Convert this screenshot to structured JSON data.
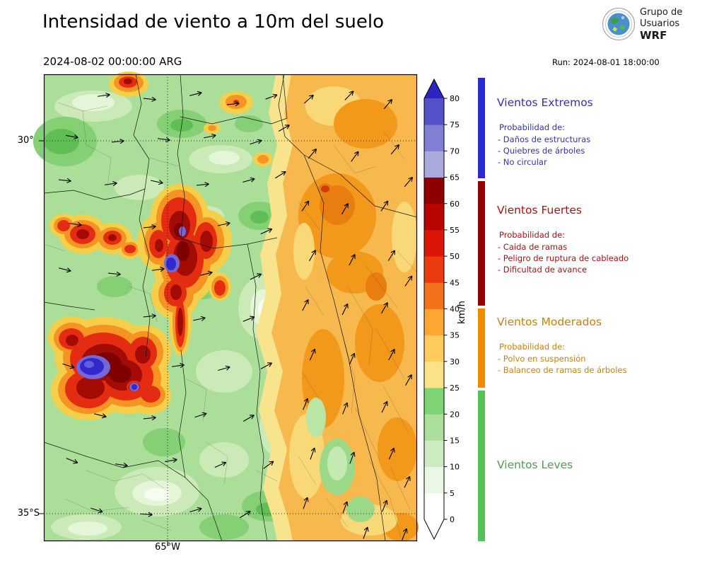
{
  "header": {
    "title": "Intensidad de viento a 10m del suelo",
    "valid_datetime": "2024-08-02 00:00:00 ARG",
    "run_label": "Run: 2024-08-01 18:00:00",
    "logo": {
      "line1": "Grupo de",
      "line2": "Usuarios",
      "line3": "WRF"
    }
  },
  "map": {
    "lat_labels": [
      "30°S",
      "35°S"
    ],
    "lon_label": "65°W"
  },
  "colorbar": {
    "unit": "km/h",
    "ticks": [
      0,
      5,
      10,
      15,
      20,
      25,
      30,
      35,
      40,
      45,
      50,
      55,
      60,
      65,
      70,
      75,
      80
    ],
    "colors": [
      "#ffffff",
      "#e9f7e4",
      "#cdebc0",
      "#abdf9c",
      "#7ed474",
      "#fbe289",
      "#fdcc5c",
      "#fda632",
      "#f4711c",
      "#ea3b10",
      "#dc1607",
      "#b80403",
      "#8f0000",
      "#aaaadd",
      "#7f7fd4",
      "#5352c8"
    ],
    "over_color": "#2d24bd",
    "under_color": "#ffffff"
  },
  "legend": {
    "sections": [
      {
        "title": "Vientos Extremos",
        "color": "#3333ad",
        "strip_color": "#2a2ad0",
        "prob": "Probabilidad de:",
        "items": [
          "- Daños de estructuras",
          "- Quiebres de árboles",
          "- No circular"
        ]
      },
      {
        "title": "Vientos Fuertes",
        "color": "#aa1111",
        "strip_color": "#940000",
        "prob": "Probabilidad de:",
        "items": [
          "- Caida de ramas",
          "- Peligro de ruptura de cableado",
          "- Dificultad de avance"
        ]
      },
      {
        "title": "Vientos Moderados",
        "color": "#c8830a",
        "strip_color": "#f08c00",
        "prob": "Probabilidad de:",
        "items": [
          "- Polvo en suspensión",
          "- Balanceo de ramas de árboles"
        ]
      },
      {
        "title": "Vientos Leves",
        "color": "#4e9e4e",
        "strip_color": "#58c25a",
        "prob": "",
        "items": []
      }
    ]
  }
}
